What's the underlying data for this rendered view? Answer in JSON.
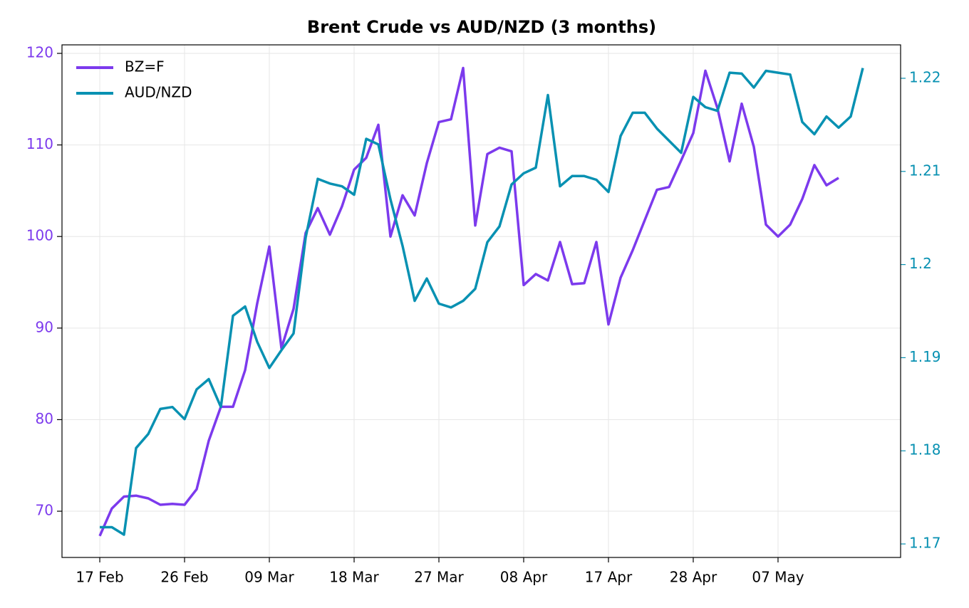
{
  "chart_data": {
    "type": "line",
    "title": "Brent Crude vs AUD/NZD (3 months)",
    "categories": [
      "17 Feb",
      null,
      null,
      null,
      null,
      null,
      null,
      "26 Feb",
      null,
      null,
      null,
      null,
      null,
      null,
      "09 Mar",
      null,
      null,
      null,
      null,
      null,
      null,
      "18 Mar",
      null,
      null,
      null,
      null,
      null,
      null,
      "27 Mar",
      null,
      null,
      null,
      null,
      null,
      null,
      "08 Apr",
      null,
      null,
      null,
      null,
      null,
      null,
      "17 Apr",
      null,
      null,
      null,
      null,
      null,
      null,
      "28 Apr",
      null,
      null,
      null,
      null,
      null,
      null,
      "07 May",
      null,
      null,
      null,
      null,
      null,
      null,
      null
    ],
    "series": [
      {
        "name": "BZ=F",
        "color": "#7c3aed",
        "axis": "y",
        "values": [
          67.3,
          70.3,
          71.6,
          71.7,
          71.4,
          70.7,
          70.8,
          70.7,
          72.4,
          77.7,
          81.4,
          81.4,
          85.4,
          92.7,
          98.9,
          87.8,
          92.1,
          100.4,
          103.1,
          100.2,
          103.3,
          107.3,
          108.6,
          112.2,
          100.0,
          104.5,
          102.3,
          108.0,
          112.5,
          112.8,
          118.4,
          101.2,
          109.0,
          109.7,
          109.3,
          94.7,
          95.9,
          95.2,
          99.4,
          94.8,
          94.9,
          99.4,
          90.4,
          95.5,
          98.5,
          101.8,
          105.1,
          105.4,
          108.3,
          111.3,
          118.1,
          114.0,
          108.2,
          114.5,
          109.8,
          101.3,
          100.0,
          101.3,
          104.1,
          107.8,
          105.6,
          106.4,
          null,
          null
        ]
      },
      {
        "name": "AUD/NZD",
        "color": "#0891b2",
        "axis": "y2",
        "values": [
          1.1718,
          1.1718,
          1.171,
          1.1803,
          1.1818,
          1.1845,
          1.1847,
          1.1834,
          1.1866,
          1.1877,
          1.1847,
          1.1945,
          1.1955,
          1.1917,
          1.1889,
          1.1908,
          1.1926,
          1.2029,
          1.2092,
          1.2087,
          1.2084,
          1.2075,
          1.2135,
          1.2129,
          1.207,
          1.202,
          1.1961,
          1.1985,
          1.1958,
          1.1954,
          1.1961,
          1.1974,
          1.2024,
          1.2041,
          1.2086,
          1.2098,
          1.2104,
          1.2182,
          1.2084,
          1.2095,
          1.2095,
          1.2091,
          1.2078,
          1.2138,
          1.2163,
          1.2163,
          1.2146,
          1.2133,
          1.212,
          1.218,
          1.2169,
          1.2165,
          1.2206,
          1.2205,
          1.219,
          1.2208,
          1.2206,
          1.2204,
          1.2153,
          1.214,
          1.2159,
          1.2147,
          1.2159,
          1.2211
        ]
      }
    ],
    "ylim": [
      64.95,
      120.93
    ],
    "yticks": [
      70,
      80,
      90,
      100,
      110,
      120
    ],
    "y2lim": [
      1.16855,
      1.22359
    ],
    "y2ticks": [
      1.17,
      1.18,
      1.19,
      1.2,
      1.21,
      1.22
    ],
    "grid": true,
    "legend": "upper-left"
  }
}
